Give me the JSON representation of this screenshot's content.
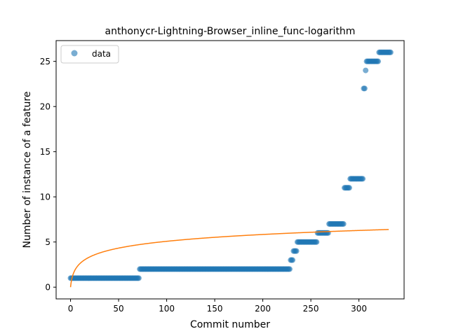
{
  "chart_data": {
    "type": "scatter",
    "title": "anthonycr-Lightning-Browser_inline_func-logarithm",
    "xlabel": "Commit number",
    "ylabel": "Number of instance of a feature",
    "xlim": [
      -15,
      347
    ],
    "ylim": [
      -1.3,
      27.3
    ],
    "xticks": [
      0,
      50,
      100,
      150,
      200,
      250,
      300
    ],
    "yticks": [
      0,
      5,
      10,
      15,
      20,
      25
    ],
    "grid": false,
    "legend": {
      "placement": "top-left",
      "entries": [
        "data"
      ]
    },
    "colors": {
      "data": "#1f77b4",
      "fit": "#ff7f0e"
    },
    "series": [
      {
        "name": "data",
        "kind": "scatter",
        "segments": [
          {
            "x_start": 0,
            "x_end": 71,
            "y": 1
          },
          {
            "x_start": 72,
            "x_end": 228,
            "y": 2
          },
          {
            "x_start": 229,
            "x_end": 231,
            "y": 3
          },
          {
            "x_start": 232,
            "x_end": 235,
            "y": 4
          },
          {
            "x_start": 236,
            "x_end": 256,
            "y": 5
          },
          {
            "x_start": 257,
            "x_end": 268,
            "y": 6
          },
          {
            "x_start": 269,
            "x_end": 284,
            "y": 7
          },
          {
            "x_start": 285,
            "x_end": 290,
            "y": 11
          },
          {
            "x_start": 291,
            "x_end": 304,
            "y": 12
          },
          {
            "x_start": 305,
            "x_end": 306,
            "y": 22
          },
          {
            "x_start": 307,
            "x_end": 307,
            "y": 24
          },
          {
            "x_start": 308,
            "x_end": 320,
            "y": 25
          },
          {
            "x_start": 321,
            "x_end": 333,
            "y": 26
          }
        ]
      },
      {
        "kind": "line",
        "model": "logarithm",
        "x_range": [
          0,
          331
        ],
        "coefficients": {
          "a": 1.1,
          "b": 0
        }
      }
    ]
  }
}
